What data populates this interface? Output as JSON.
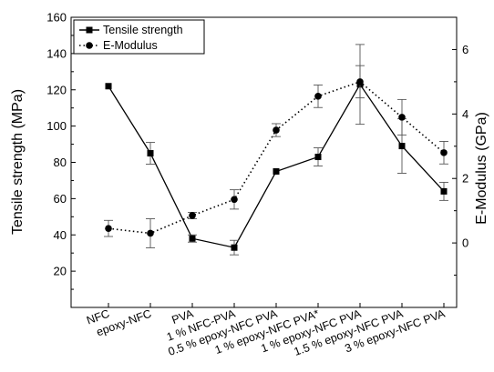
{
  "chart_data": {
    "type": "line",
    "categories": [
      "NFC",
      "epoxy-NFC",
      "PVA",
      "1 % NFC-PVA",
      "0.5 % epoxy-NFC PVA",
      "1 % epoxy-NFC PVA*",
      "1 % epoxy-NFC PVA",
      "1.5 % epoxy-NFC PVA",
      "3 % epoxy-NFC PVA"
    ],
    "ylabel": "Tensile strength (MPa)",
    "y2label": "E-Modulus (GPa)",
    "ylim": [
      0,
      160
    ],
    "y2lim": [
      -2,
      7
    ],
    "yticks": [
      20,
      40,
      60,
      80,
      100,
      120,
      140,
      160
    ],
    "y2ticks": [
      0,
      2,
      4,
      6
    ],
    "grid": false,
    "legend_position": "top-left",
    "series": [
      {
        "name": "Tensile strength",
        "axis": "left",
        "marker": "square",
        "line": "solid",
        "values": [
          122,
          85,
          38,
          33,
          75,
          83,
          123,
          89,
          64
        ],
        "errors": [
          null,
          6,
          2,
          4,
          null,
          5,
          22,
          15,
          5
        ]
      },
      {
        "name": "E-Modulus",
        "axis": "right",
        "marker": "circle",
        "line": "dotted",
        "values": [
          0.45,
          0.3,
          0.85,
          1.35,
          3.5,
          4.55,
          5.0,
          3.9,
          2.8
        ],
        "errors": [
          0.25,
          0.45,
          0.1,
          0.3,
          0.2,
          0.35,
          0.5,
          0.55,
          0.35
        ]
      }
    ]
  }
}
